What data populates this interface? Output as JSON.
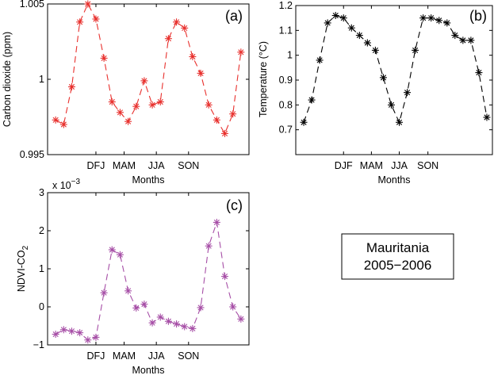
{
  "chart_data": [
    {
      "id": "a",
      "type": "line",
      "panel_label": "(a)",
      "title": "",
      "ylabel": "Carbon dioxide (ppm)",
      "xlabel": "Months",
      "xlim": [
        0,
        25
      ],
      "ylim": [
        0.995,
        1.005
      ],
      "xticks": [
        {
          "x": 6,
          "label": "DFJ"
        },
        {
          "x": 9.5,
          "label": "MAM"
        },
        {
          "x": 13.5,
          "label": "JJA"
        },
        {
          "x": 17.5,
          "label": "SON"
        }
      ],
      "yticks": [
        {
          "v": 0.995,
          "label": "0.995"
        },
        {
          "v": 1.0,
          "label": "1"
        },
        {
          "v": 1.005,
          "label": "1.005"
        }
      ],
      "color": "#e8302d",
      "marker": "*",
      "linestyle": "dashed",
      "series": [
        {
          "x": [
            1,
            2,
            3,
            4,
            5,
            6,
            7,
            8,
            9,
            10,
            11,
            12,
            13,
            14,
            15,
            16,
            17,
            18,
            19,
            20,
            21,
            22,
            23,
            24
          ],
          "values": [
            0.9973,
            0.997,
            0.9995,
            1.0038,
            1.005,
            1.004,
            1.0014,
            0.9985,
            0.9978,
            0.9972,
            0.9982,
            0.9999,
            0.9983,
            0.9985,
            1.0027,
            1.0038,
            1.0034,
            1.0015,
            1.0004,
            0.9983,
            0.9973,
            0.9964,
            0.9977,
            1.0018
          ]
        }
      ]
    },
    {
      "id": "b",
      "type": "line",
      "panel_label": "(b)",
      "title": "",
      "ylabel": "Temperature (°C)",
      "xlabel": "Months",
      "xlim": [
        0,
        24.7
      ],
      "ylim": [
        0.6,
        1.2
      ],
      "xticks": [
        {
          "x": 6,
          "label": "DJF"
        },
        {
          "x": 9.5,
          "label": "MAM"
        },
        {
          "x": 13,
          "label": "JJA"
        },
        {
          "x": 16.6,
          "label": "SON"
        }
      ],
      "yticks": [
        {
          "v": 0.7,
          "label": "0.7"
        },
        {
          "v": 0.8,
          "label": "0.8"
        },
        {
          "v": 0.9,
          "label": "0.9"
        },
        {
          "v": 1.0,
          "label": "1"
        },
        {
          "v": 1.1,
          "label": "1.1"
        },
        {
          "v": 1.2,
          "label": "1.2"
        }
      ],
      "color": "#000000",
      "marker": "*",
      "linestyle": "dashed",
      "series": [
        {
          "x": [
            1,
            2,
            3,
            4,
            5,
            6,
            7,
            8,
            9,
            10,
            11,
            12,
            13,
            14,
            15,
            16,
            17,
            18,
            19,
            20,
            21,
            22,
            23,
            24
          ],
          "values": [
            0.73,
            0.82,
            0.98,
            1.13,
            1.16,
            1.15,
            1.11,
            1.08,
            1.05,
            1.02,
            0.91,
            0.8,
            0.73,
            0.85,
            1.02,
            1.15,
            1.15,
            1.14,
            1.13,
            1.08,
            1.06,
            1.06,
            0.93,
            0.75
          ]
        }
      ]
    },
    {
      "id": "c",
      "type": "line",
      "panel_label": "(c)",
      "title": "",
      "ylabel_main": "NDVI-CO",
      "ylabel_sub": "2",
      "xlabel": "Months",
      "y_exponent_base": "x 10",
      "y_exponent_power": "−3",
      "xlim": [
        0,
        25
      ],
      "ylim": [
        -1,
        3
      ],
      "xticks": [
        {
          "x": 6,
          "label": "DFJ"
        },
        {
          "x": 9.5,
          "label": "MAM"
        },
        {
          "x": 13.5,
          "label": "JJA"
        },
        {
          "x": 17.5,
          "label": "SON"
        }
      ],
      "yticks": [
        {
          "v": -1,
          "label": "−1"
        },
        {
          "v": 0,
          "label": "0"
        },
        {
          "v": 1,
          "label": "1"
        },
        {
          "v": 2,
          "label": "2"
        },
        {
          "v": 3,
          "label": "3"
        }
      ],
      "color": "#a64ea6",
      "marker": "*",
      "linestyle": "dashed",
      "series": [
        {
          "x": [
            1,
            2,
            3,
            4,
            5,
            6,
            7,
            8,
            9,
            10,
            11,
            12,
            13,
            14,
            15,
            16,
            17,
            18,
            19,
            20,
            21,
            22,
            23,
            24
          ],
          "values": [
            -0.72,
            -0.6,
            -0.64,
            -0.68,
            -0.87,
            -0.8,
            0.37,
            1.5,
            1.37,
            0.42,
            -0.03,
            0.07,
            -0.42,
            -0.27,
            -0.38,
            -0.45,
            -0.52,
            -0.57,
            -0.02,
            1.6,
            2.22,
            0.8,
            0.0,
            -0.32
          ]
        }
      ]
    }
  ],
  "legend_box": {
    "line1": "Mauritania",
    "line2": "2005−2006"
  }
}
